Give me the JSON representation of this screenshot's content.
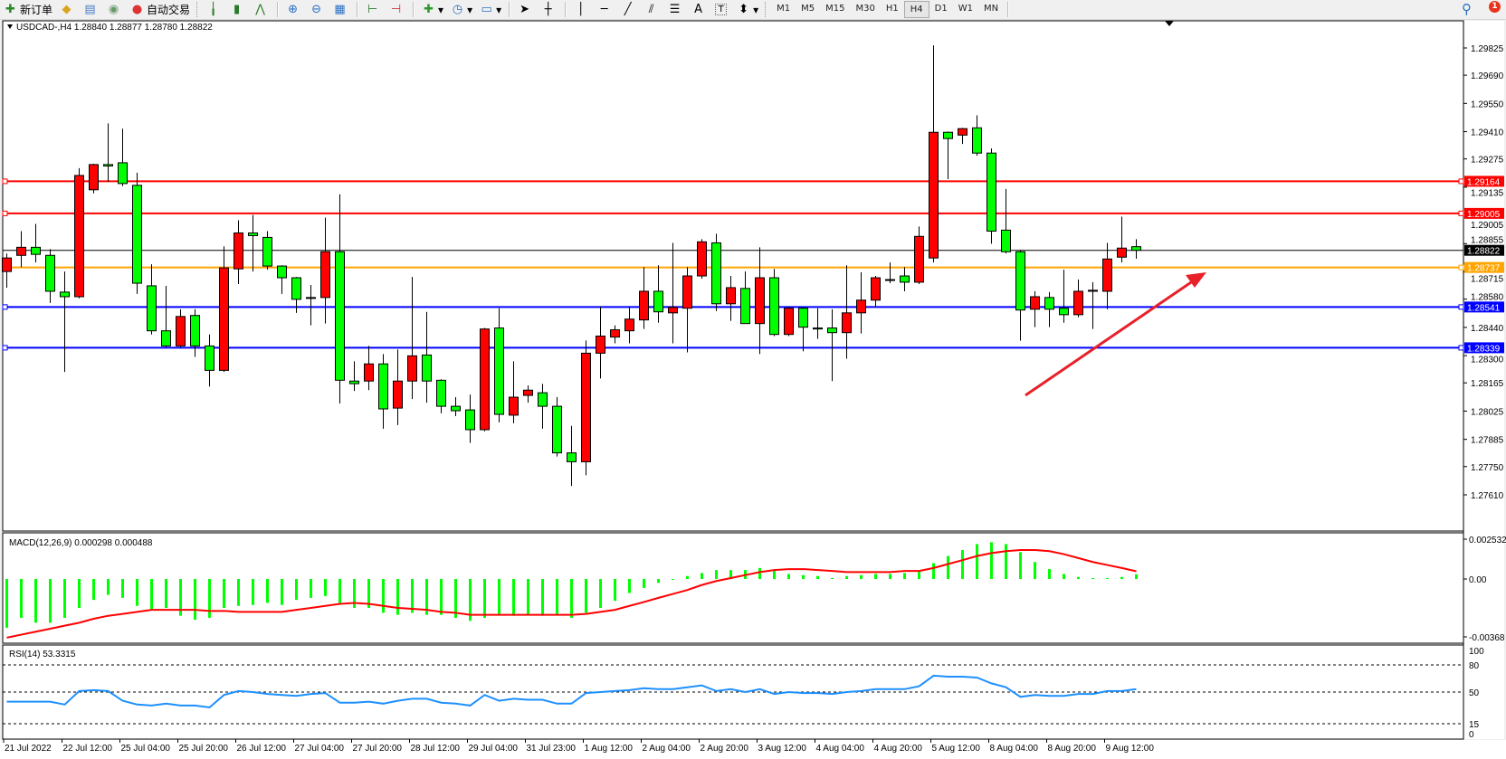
{
  "toolbar": {
    "new_order": "新订单",
    "auto_trading": "自动交易",
    "timeframes": [
      "M1",
      "M5",
      "M15",
      "M30",
      "H1",
      "H4",
      "D1",
      "W1",
      "MN"
    ],
    "active_timeframe": "H4",
    "notification_count": "1",
    "icons": [
      "new-order-icon",
      "gold-icon",
      "history-icon",
      "signal-icon",
      "auto-trading-icon",
      "bar-chart-icon",
      "candle-chart-icon",
      "line-chart-icon",
      "zoom-in-icon",
      "zoom-out-icon",
      "tile-windows-icon",
      "auto-scroll-icon",
      "chart-shift-icon",
      "indicators-icon",
      "periods-icon",
      "templates-icon",
      "cursor-icon",
      "crosshair-icon",
      "vertical-line-icon",
      "horizontal-line-icon",
      "trendline-icon",
      "equidistant-channel-icon",
      "fibonacci-icon",
      "text-icon",
      "text-label-icon",
      "arrows-icon",
      "search-icon",
      "notification-icon"
    ],
    "text_tool": "A",
    "label_tool": "T"
  },
  "chart": {
    "header": "USDCAD-,H4  1.28840 1.28877 1.28780 1.28822",
    "bull_color": "#ff0000",
    "bear_color": "#00ff00",
    "price_ticks": [
      "1.29825",
      "1.29690",
      "1.29550",
      "1.29410",
      "1.29275",
      "1.29135",
      "1.28855",
      "1.28715",
      "1.28580",
      "1.28440",
      "1.28300",
      "1.28165",
      "1.28025",
      "1.27885",
      "1.27750",
      "1.27610"
    ],
    "hidden_ticks": [
      "1.29005"
    ],
    "levels": [
      {
        "price": "1.29164",
        "color": "#ff0000"
      },
      {
        "price": "1.29005",
        "color": "#ff0000"
      },
      {
        "price": "1.28822",
        "color": "#000000"
      },
      {
        "price": "1.28737",
        "color": "#ffa500"
      },
      {
        "price": "1.28541",
        "color": "#0000ff"
      },
      {
        "price": "1.28339",
        "color": "#0000ff"
      }
    ],
    "time_labels": [
      "21 Jul 2022",
      "22 Jul 12:00",
      "25 Jul 04:00",
      "25 Jul 20:00",
      "26 Jul 12:00",
      "27 Jul 04:00",
      "27 Jul 20:00",
      "28 Jul 12:00",
      "29 Jul 04:00",
      "31 Jul 23:00",
      "1 Aug 12:00",
      "2 Aug 04:00",
      "2 Aug 20:00",
      "3 Aug 12:00",
      "4 Aug 04:00",
      "4 Aug 20:00",
      "5 Aug 12:00",
      "8 Aug 04:00",
      "8 Aug 20:00",
      "9 Aug 12:00"
    ],
    "annotation": {
      "type": "arrow",
      "color": "#e8202a",
      "direction": "up-right"
    },
    "macd": {
      "header": "MACD(12,26,9) 0.000298 0.000488",
      "ticks": [
        "0.002532",
        "0.00",
        "-0.00368"
      ],
      "hist_color": "#00ff00",
      "signal_color": "#ff0000"
    },
    "rsi": {
      "header": "RSI(14) 53.3315",
      "ticks": [
        "100",
        "80",
        "50",
        "15",
        "0"
      ],
      "levels": [
        80,
        50,
        15
      ],
      "color": "#1e90ff"
    }
  },
  "chart_data": {
    "type": "candlestick",
    "symbol": "USDCAD-",
    "timeframe": "H4",
    "ylim": [
      1.2761,
      1.29825
    ],
    "ohlc": [
      [
        1.28717,
        1.28806,
        1.28637,
        1.28784
      ],
      [
        1.28797,
        1.28917,
        1.28739,
        1.28837
      ],
      [
        1.28837,
        1.28953,
        1.28762,
        1.28802
      ],
      [
        1.28797,
        1.28828,
        1.28561,
        1.28619
      ],
      [
        1.28615,
        1.28717,
        1.28219,
        1.28592
      ],
      [
        1.28592,
        1.29229,
        1.28584,
        1.29193
      ],
      [
        1.29122,
        1.29251,
        1.29104,
        1.29247
      ],
      [
        1.29247,
        1.29451,
        1.29162,
        1.2924
      ],
      [
        1.29256,
        1.29425,
        1.2914,
        1.29153
      ],
      [
        1.29144,
        1.29207,
        1.28606,
        1.28659
      ],
      [
        1.28646,
        1.28753,
        1.28405,
        1.28423
      ],
      [
        1.28423,
        1.28646,
        1.28343,
        1.28348
      ],
      [
        1.28348,
        1.2853,
        1.28343,
        1.28494
      ],
      [
        1.28499,
        1.2853,
        1.28294,
        1.28348
      ],
      [
        1.28348,
        1.28405,
        1.28147,
        1.28227
      ],
      [
        1.28227,
        1.28842,
        1.28219,
        1.28735
      ],
      [
        1.2873,
        1.28971,
        1.28655,
        1.28908
      ],
      [
        1.28908,
        1.28997,
        1.28717,
        1.28895
      ],
      [
        1.28886,
        1.28917,
        1.28726,
        1.28744
      ],
      [
        1.28744,
        1.28748,
        1.28606,
        1.28686
      ],
      [
        1.28686,
        1.2869,
        1.28512,
        1.28579
      ],
      [
        1.28588,
        1.2865,
        1.2845,
        1.28584
      ],
      [
        1.28588,
        1.28984,
        1.28459,
        1.28815
      ],
      [
        1.28815,
        1.291,
        1.28063,
        1.28178
      ],
      [
        1.28174,
        1.28272,
        1.28125,
        1.28161
      ],
      [
        1.28174,
        1.28348,
        1.28129,
        1.28259
      ],
      [
        1.28259,
        1.28308,
        1.27938,
        1.28036
      ],
      [
        1.2804,
        1.2833,
        1.27956,
        1.28174
      ],
      [
        1.28174,
        1.2869,
        1.28085,
        1.28299
      ],
      [
        1.28303,
        1.28517,
        1.28067,
        1.28174
      ],
      [
        1.28178,
        1.28183,
        1.28014,
        1.28049
      ],
      [
        1.28049,
        1.28094,
        1.28,
        1.28027
      ],
      [
        1.28031,
        1.28107,
        1.27867,
        1.27933
      ],
      [
        1.27933,
        1.28437,
        1.27925,
        1.28432
      ],
      [
        1.28437,
        1.28535,
        1.27969,
        1.28009
      ],
      [
        1.28005,
        1.28272,
        1.27965,
        1.28094
      ],
      [
        1.28103,
        1.28152,
        1.28067,
        1.28129
      ],
      [
        1.28116,
        1.2816,
        1.27938,
        1.28049
      ],
      [
        1.28049,
        1.28094,
        1.278,
        1.27818
      ],
      [
        1.27818,
        1.27952,
        1.27654,
        1.27774
      ],
      [
        1.27774,
        1.28375,
        1.27707,
        1.28312
      ],
      [
        1.28312,
        1.28543,
        1.28187,
        1.28397
      ],
      [
        1.28392,
        1.2845,
        1.28361,
        1.28428
      ],
      [
        1.28423,
        1.28543,
        1.28361,
        1.28481
      ],
      [
        1.28477,
        1.28739,
        1.28432,
        1.28619
      ],
      [
        1.28619,
        1.28748,
        1.28463,
        1.28517
      ],
      [
        1.28512,
        1.28859,
        1.28361,
        1.28539
      ],
      [
        1.28535,
        1.28739,
        1.28316,
        1.28695
      ],
      [
        1.28695,
        1.28877,
        1.28681,
        1.28864
      ],
      [
        1.28859,
        1.28904,
        1.28521,
        1.28557
      ],
      [
        1.28557,
        1.28695,
        1.28472,
        1.28637
      ],
      [
        1.28633,
        1.28717,
        1.28459,
        1.28459
      ],
      [
        1.28459,
        1.28837,
        1.28308,
        1.28686
      ],
      [
        1.28686,
        1.2873,
        1.28397,
        1.28405
      ],
      [
        1.28405,
        1.28539,
        1.28397,
        1.28535
      ],
      [
        1.28535,
        1.28539,
        1.28321,
        1.28441
      ],
      [
        1.28437,
        1.28535,
        1.28383,
        1.28432
      ],
      [
        1.28437,
        1.2853,
        1.28174,
        1.28414
      ],
      [
        1.28414,
        1.28748,
        1.28285,
        1.28512
      ],
      [
        1.28512,
        1.28713,
        1.2841,
        1.28575
      ],
      [
        1.28575,
        1.28695,
        1.28543,
        1.28686
      ],
      [
        1.28673,
        1.28762,
        1.28659,
        1.28677
      ],
      [
        1.28695,
        1.28739,
        1.28619,
        1.28664
      ],
      [
        1.28664,
        1.2894,
        1.28655,
        1.28891
      ],
      [
        1.28784,
        1.29838,
        1.28762,
        1.29407
      ],
      [
        1.29407,
        1.29411,
        1.29175,
        1.29376
      ],
      [
        1.29393,
        1.29429,
        1.29349,
        1.29425
      ],
      [
        1.29429,
        1.29491,
        1.29291,
        1.29304
      ],
      [
        1.29304,
        1.29327,
        1.28855,
        1.28917
      ],
      [
        1.28922,
        1.29126,
        1.28806,
        1.28815
      ],
      [
        1.28815,
        1.28824,
        1.28374,
        1.28526
      ],
      [
        1.2853,
        1.28619,
        1.28441,
        1.28592
      ],
      [
        1.28588,
        1.28615,
        1.28441,
        1.2853
      ],
      [
        1.28535,
        1.28726,
        1.28463,
        1.28503
      ],
      [
        1.28503,
        1.28677,
        1.2849,
        1.28619
      ],
      [
        1.28619,
        1.28664,
        1.28432,
        1.28624
      ],
      [
        1.28619,
        1.28859,
        1.2853,
        1.28779
      ],
      [
        1.28788,
        1.28989,
        1.28762,
        1.28833
      ],
      [
        1.2884,
        1.28877,
        1.2878,
        1.28822
      ]
    ],
    "macd_main": [
      -0.0031,
      -0.00247,
      -0.00278,
      -0.00278,
      -0.00247,
      -0.00184,
      -0.00133,
      -0.00101,
      -0.0012,
      -0.00171,
      -0.00196,
      -0.00184,
      -0.00234,
      -0.00259,
      -0.00247,
      -0.00184,
      -0.00171,
      -0.00165,
      -0.00152,
      -0.00165,
      -0.00133,
      -0.0012,
      -0.00108,
      -0.00152,
      -0.00184,
      -0.00184,
      -0.00215,
      -0.00228,
      -0.00215,
      -0.00228,
      -0.00228,
      -0.00247,
      -0.00266,
      -0.00247,
      -0.00222,
      -0.00234,
      -0.00228,
      -0.00234,
      -0.00228,
      -0.00247,
      -0.00215,
      -0.00184,
      -0.00139,
      -0.00089,
      -0.00057,
      -0.00025,
      -6e-05,
      0.00019,
      0.00038,
      0.00057,
      0.00057,
      0.00057,
      0.0007,
      0.00057,
      0.00032,
      0.00025,
      0.00019,
      6e-05,
      0.00019,
      0.00025,
      0.00032,
      0.00032,
      0.00038,
      0.00051,
      0.00101,
      0.00146,
      0.00184,
      0.00222,
      0.00234,
      0.00222,
      0.00171,
      0.00108,
      0.00063,
      0.00032,
      0.00013,
      6e-05,
      6e-05,
      0.00013,
      0.0003
    ],
    "macd_signal": [
      -0.00373,
      -0.00354,
      -0.00335,
      -0.00316,
      -0.00297,
      -0.00278,
      -0.00253,
      -0.00234,
      -0.00222,
      -0.00209,
      -0.00196,
      -0.00196,
      -0.00196,
      -0.00196,
      -0.00203,
      -0.00203,
      -0.00209,
      -0.00209,
      -0.00209,
      -0.00209,
      -0.00196,
      -0.00184,
      -0.00171,
      -0.00158,
      -0.00152,
      -0.00158,
      -0.00171,
      -0.00184,
      -0.0019,
      -0.00196,
      -0.00209,
      -0.00215,
      -0.00228,
      -0.00228,
      -0.00228,
      -0.00228,
      -0.00228,
      -0.00228,
      -0.00228,
      -0.00228,
      -0.00222,
      -0.00209,
      -0.00196,
      -0.00171,
      -0.00146,
      -0.0012,
      -0.00095,
      -0.0007,
      -0.00038,
      -0.00013,
      6e-05,
      0.00025,
      0.00044,
      0.00057,
      0.00063,
      0.00063,
      0.00057,
      0.00051,
      0.00044,
      0.00044,
      0.00044,
      0.00044,
      0.00051,
      0.00051,
      0.0007,
      0.00095,
      0.0012,
      0.00146,
      0.00165,
      0.00177,
      0.00184,
      0.00184,
      0.00177,
      0.00158,
      0.00133,
      0.00108,
      0.00089,
      0.0007,
      0.00049
    ],
    "rsi": [
      39.4,
      39.4,
      39.4,
      39.4,
      36.2,
      51.1,
      52.1,
      51.1,
      40.4,
      36.2,
      35.1,
      37.2,
      35.1,
      35.1,
      33.0,
      46.8,
      51.1,
      50.0,
      47.9,
      46.8,
      45.7,
      47.9,
      48.9,
      38.3,
      38.3,
      39.4,
      37.2,
      40.4,
      42.6,
      42.6,
      38.3,
      37.2,
      35.1,
      46.8,
      40.4,
      42.6,
      41.5,
      41.5,
      37.2,
      37.2,
      48.9,
      50.0,
      51.1,
      52.1,
      54.3,
      53.2,
      53.2,
      55.3,
      57.4,
      51.1,
      53.2,
      50.0,
      53.2,
      47.9,
      50.0,
      48.9,
      48.9,
      47.9,
      50.0,
      51.1,
      53.2,
      53.2,
      53.2,
      56.4,
      68.1,
      67.0,
      67.0,
      66.0,
      59.6,
      55.3,
      44.7,
      46.8,
      45.7,
      45.7,
      47.9,
      47.9,
      51.1,
      51.1,
      53.3
    ]
  }
}
